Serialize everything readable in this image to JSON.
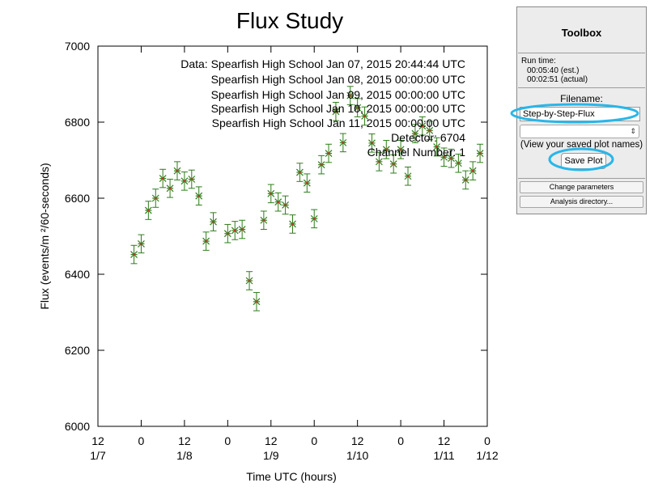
{
  "chart_data": {
    "type": "scatter",
    "title": "Flux Study",
    "xlabel": "Time UTC (hours)",
    "ylabel": "Flux (events/m ²/60-seconds)",
    "ylim": [
      6000,
      7000
    ],
    "yticks": [
      6000,
      6200,
      6400,
      6600,
      6800,
      7000
    ],
    "xlim": [
      "2015-01-07 12:00",
      "2015-01-12 00:00"
    ],
    "xticks": [
      {
        "time": "2015-01-07 12:00",
        "line1": "12",
        "line2": "1/7"
      },
      {
        "time": "2015-01-08 00:00",
        "line1": "0",
        "line2": ""
      },
      {
        "time": "2015-01-08 12:00",
        "line1": "12",
        "line2": "1/8"
      },
      {
        "time": "2015-01-09 00:00",
        "line1": "0",
        "line2": ""
      },
      {
        "time": "2015-01-09 12:00",
        "line1": "12",
        "line2": "1/9"
      },
      {
        "time": "2015-01-10 00:00",
        "line1": "0",
        "line2": ""
      },
      {
        "time": "2015-01-10 12:00",
        "line1": "12",
        "line2": "1/10"
      },
      {
        "time": "2015-01-11 00:00",
        "line1": "0",
        "line2": ""
      },
      {
        "time": "2015-01-11 12:00",
        "line1": "12",
        "line2": "1/11"
      },
      {
        "time": "2015-01-12 00:00",
        "line1": "0",
        "line2": "1/12"
      }
    ],
    "annotations": [
      "Data: Spearfish High School Jan 07, 2015 20:44:44 UTC",
      "Spearfish High School Jan 08, 2015 00:00:00 UTC",
      "Spearfish High School Jan 09, 2015 00:00:00 UTC",
      "Spearfish High School Jan 10, 2015 00:00:00 UTC",
      "Spearfish High School Jan 11, 2015 00:00:00 UTC",
      "Detector: 6704",
      "Channel Number: 1"
    ],
    "grid": false,
    "marker_color": "#2e7d1a",
    "marker_center_color": "#c0392b",
    "error_bar": 24,
    "points": [
      {
        "x": "2015-01-07 22:00",
        "y": 6452
      },
      {
        "x": "2015-01-08 00:00",
        "y": 6480
      },
      {
        "x": "2015-01-08 02:00",
        "y": 6568
      },
      {
        "x": "2015-01-08 04:00",
        "y": 6600
      },
      {
        "x": "2015-01-08 06:00",
        "y": 6652
      },
      {
        "x": "2015-01-08 08:00",
        "y": 6626
      },
      {
        "x": "2015-01-08 10:00",
        "y": 6672
      },
      {
        "x": "2015-01-08 12:00",
        "y": 6645
      },
      {
        "x": "2015-01-08 14:00",
        "y": 6650
      },
      {
        "x": "2015-01-08 16:00",
        "y": 6606
      },
      {
        "x": "2015-01-08 18:00",
        "y": 6487
      },
      {
        "x": "2015-01-08 20:00",
        "y": 6538
      },
      {
        "x": "2015-01-09 00:00",
        "y": 6507
      },
      {
        "x": "2015-01-09 02:00",
        "y": 6515
      },
      {
        "x": "2015-01-09 04:00",
        "y": 6518
      },
      {
        "x": "2015-01-09 06:00",
        "y": 6383
      },
      {
        "x": "2015-01-09 08:00",
        "y": 6328
      },
      {
        "x": "2015-01-09 10:00",
        "y": 6542
      },
      {
        "x": "2015-01-09 12:00",
        "y": 6612
      },
      {
        "x": "2015-01-09 14:00",
        "y": 6590
      },
      {
        "x": "2015-01-09 16:00",
        "y": 6582
      },
      {
        "x": "2015-01-09 18:00",
        "y": 6532
      },
      {
        "x": "2015-01-09 20:00",
        "y": 6668
      },
      {
        "x": "2015-01-09 22:00",
        "y": 6640
      },
      {
        "x": "2015-01-10 00:00",
        "y": 6546
      },
      {
        "x": "2015-01-10 02:00",
        "y": 6688
      },
      {
        "x": "2015-01-10 04:00",
        "y": 6718
      },
      {
        "x": "2015-01-10 06:00",
        "y": 6828
      },
      {
        "x": "2015-01-10 08:00",
        "y": 6746
      },
      {
        "x": "2015-01-10 10:00",
        "y": 6870
      },
      {
        "x": "2015-01-10 12:00",
        "y": 6838
      },
      {
        "x": "2015-01-10 14:00",
        "y": 6816
      },
      {
        "x": "2015-01-10 16:00",
        "y": 6745
      },
      {
        "x": "2015-01-10 18:00",
        "y": 6696
      },
      {
        "x": "2015-01-10 20:00",
        "y": 6728
      },
      {
        "x": "2015-01-10 22:00",
        "y": 6690
      },
      {
        "x": "2015-01-11 00:00",
        "y": 6728
      },
      {
        "x": "2015-01-11 02:00",
        "y": 6658
      },
      {
        "x": "2015-01-11 04:00",
        "y": 6770
      },
      {
        "x": "2015-01-11 06:00",
        "y": 6790
      },
      {
        "x": "2015-01-11 08:00",
        "y": 6778
      },
      {
        "x": "2015-01-11 10:00",
        "y": 6735
      },
      {
        "x": "2015-01-11 12:00",
        "y": 6708
      },
      {
        "x": "2015-01-11 14:00",
        "y": 6705
      },
      {
        "x": "2015-01-11 16:00",
        "y": 6692
      },
      {
        "x": "2015-01-11 18:00",
        "y": 6648
      },
      {
        "x": "2015-01-11 20:00",
        "y": 6672
      },
      {
        "x": "2015-01-11 22:00",
        "y": 6718
      }
    ]
  },
  "toolbox": {
    "title": "Toolbox",
    "run_time_label": "Run time:",
    "run_time_est": "00:05:40 (est.)",
    "run_time_actual": "00:02:51 (actual)",
    "filename_label": "Filename:",
    "filename_value": "Step-by-Step-Flux",
    "saved_names_hint": "(View your saved plot names)",
    "save_button": "Save Plot",
    "change_params_button": "Change parameters",
    "analysis_dir_button": "Analysis directory...",
    "highlight_color": "#29b6e8"
  }
}
